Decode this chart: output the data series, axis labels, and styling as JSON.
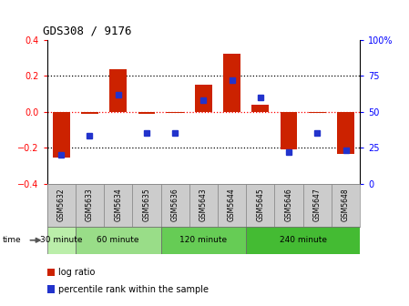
{
  "title": "GDS308 / 9176",
  "samples": [
    "GSM5632",
    "GSM5633",
    "GSM5634",
    "GSM5635",
    "GSM5636",
    "GSM5643",
    "GSM5644",
    "GSM5645",
    "GSM5646",
    "GSM5647",
    "GSM5648"
  ],
  "log_ratio": [
    -0.255,
    -0.01,
    0.235,
    -0.01,
    -0.005,
    0.15,
    0.32,
    0.04,
    -0.21,
    -0.005,
    -0.235
  ],
  "percentile": [
    20,
    33,
    62,
    35,
    35,
    58,
    72,
    60,
    22,
    35,
    23
  ],
  "bar_color": "#cc2200",
  "dot_color": "#2233cc",
  "ylim_left": [
    -0.4,
    0.4
  ],
  "ylim_right": [
    0,
    100
  ],
  "yticks_left": [
    -0.4,
    -0.2,
    0.0,
    0.2,
    0.4
  ],
  "yticks_right": [
    0,
    25,
    50,
    75,
    100
  ],
  "hlines": [
    -0.2,
    0.0,
    0.2
  ],
  "bg_color": "#ffffff",
  "sample_bg": "#cccccc",
  "time_groups": [
    {
      "label": "30 minute",
      "start": 0,
      "end": 0,
      "color": "#bbeeaa"
    },
    {
      "label": "60 minute",
      "start": 1,
      "end": 3,
      "color": "#99dd88"
    },
    {
      "label": "120 minute",
      "start": 4,
      "end": 6,
      "color": "#66cc55"
    },
    {
      "label": "240 minute",
      "start": 7,
      "end": 10,
      "color": "#44bb33"
    }
  ]
}
